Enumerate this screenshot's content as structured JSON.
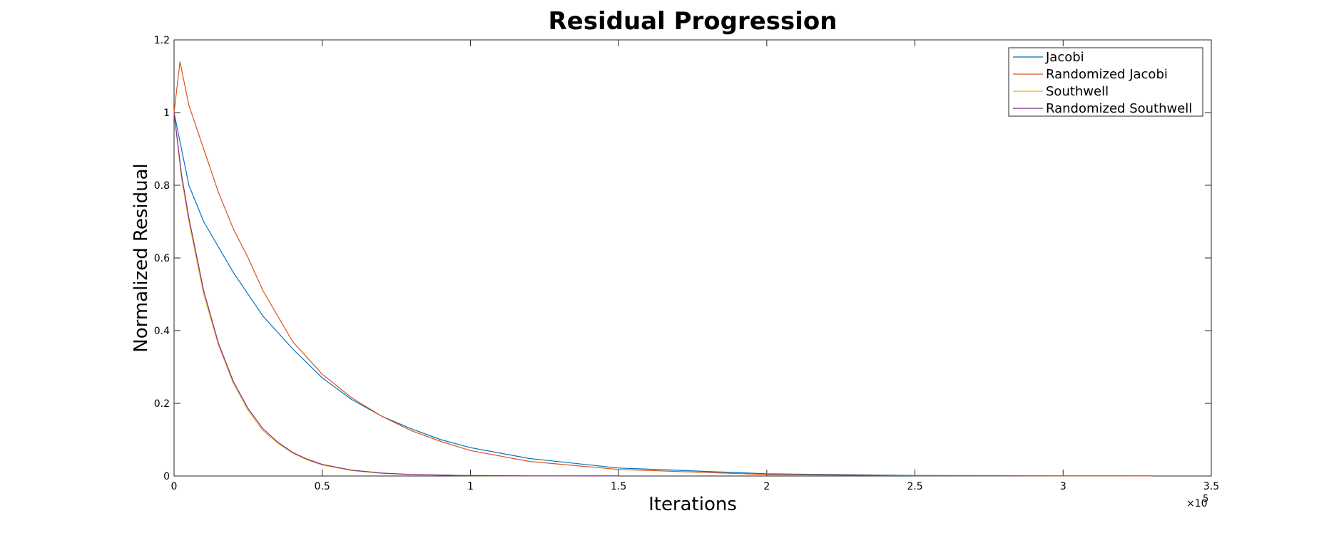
{
  "chart_data": {
    "type": "line",
    "title": "Residual Progression",
    "xlabel": "Iterations",
    "ylabel": "Normalized Residual",
    "xlim": [
      0,
      350000
    ],
    "ylim": [
      0,
      1.2
    ],
    "x_tick_labels": [
      "0",
      "0.5",
      "1",
      "1.5",
      "2",
      "2.5",
      "3",
      "3.5"
    ],
    "x_ticks": [
      0,
      50000,
      100000,
      150000,
      200000,
      250000,
      300000,
      350000
    ],
    "y_tick_labels": [
      "0",
      "0.2",
      "0.4",
      "0.6",
      "0.8",
      "1",
      "1.2"
    ],
    "y_ticks": [
      0,
      0.2,
      0.4,
      0.6,
      0.8,
      1.0,
      1.2
    ],
    "x_exponent_label": "×10",
    "x_exponent_power": "5",
    "grid": false,
    "legend_position": "top-right",
    "series": [
      {
        "name": "Jacobi",
        "color": "#0072BD",
        "x": [
          0,
          5000,
          10000,
          20000,
          30000,
          40000,
          50000,
          60000,
          70000,
          80000,
          90000,
          100000,
          120000,
          150000,
          200000,
          250000,
          300000,
          330000
        ],
        "y": [
          1.0,
          0.8,
          0.7,
          0.56,
          0.44,
          0.35,
          0.27,
          0.21,
          0.165,
          0.13,
          0.1,
          0.078,
          0.048,
          0.022,
          0.006,
          0.0015,
          0.0004,
          0.0002
        ]
      },
      {
        "name": "Randomized Jacobi",
        "color": "#D95319",
        "x": [
          0,
          2000,
          5000,
          10000,
          15000,
          20000,
          25000,
          30000,
          40000,
          50000,
          60000,
          70000,
          80000,
          90000,
          100000,
          120000,
          150000,
          200000,
          250000,
          300000,
          330000
        ],
        "y": [
          1.0,
          1.14,
          1.02,
          0.9,
          0.78,
          0.68,
          0.6,
          0.51,
          0.37,
          0.28,
          0.215,
          0.165,
          0.125,
          0.095,
          0.07,
          0.04,
          0.018,
          0.004,
          0.001,
          0.0003,
          0.0001
        ]
      },
      {
        "name": "Southwell",
        "color": "#EDB120",
        "x": [
          0,
          2500,
          5000,
          10000,
          15000,
          20000,
          25000,
          30000,
          35000,
          40000,
          45000,
          50000,
          60000,
          70000,
          80000,
          100000,
          120000,
          150000
        ],
        "y": [
          1.0,
          0.82,
          0.7,
          0.5,
          0.36,
          0.255,
          0.18,
          0.125,
          0.09,
          0.063,
          0.044,
          0.03,
          0.015,
          0.0075,
          0.004,
          0.001,
          0.0003,
          0.0001
        ]
      },
      {
        "name": "Randomized Southwell",
        "color": "#7E2F8E",
        "x": [
          0,
          2500,
          5000,
          10000,
          15000,
          20000,
          25000,
          30000,
          35000,
          40000,
          45000,
          50000,
          60000,
          70000,
          80000,
          100000,
          120000,
          150000
        ],
        "y": [
          1.0,
          0.83,
          0.71,
          0.51,
          0.365,
          0.26,
          0.185,
          0.13,
          0.093,
          0.065,
          0.046,
          0.032,
          0.016,
          0.008,
          0.0042,
          0.0011,
          0.0003,
          0.0001
        ]
      }
    ]
  }
}
